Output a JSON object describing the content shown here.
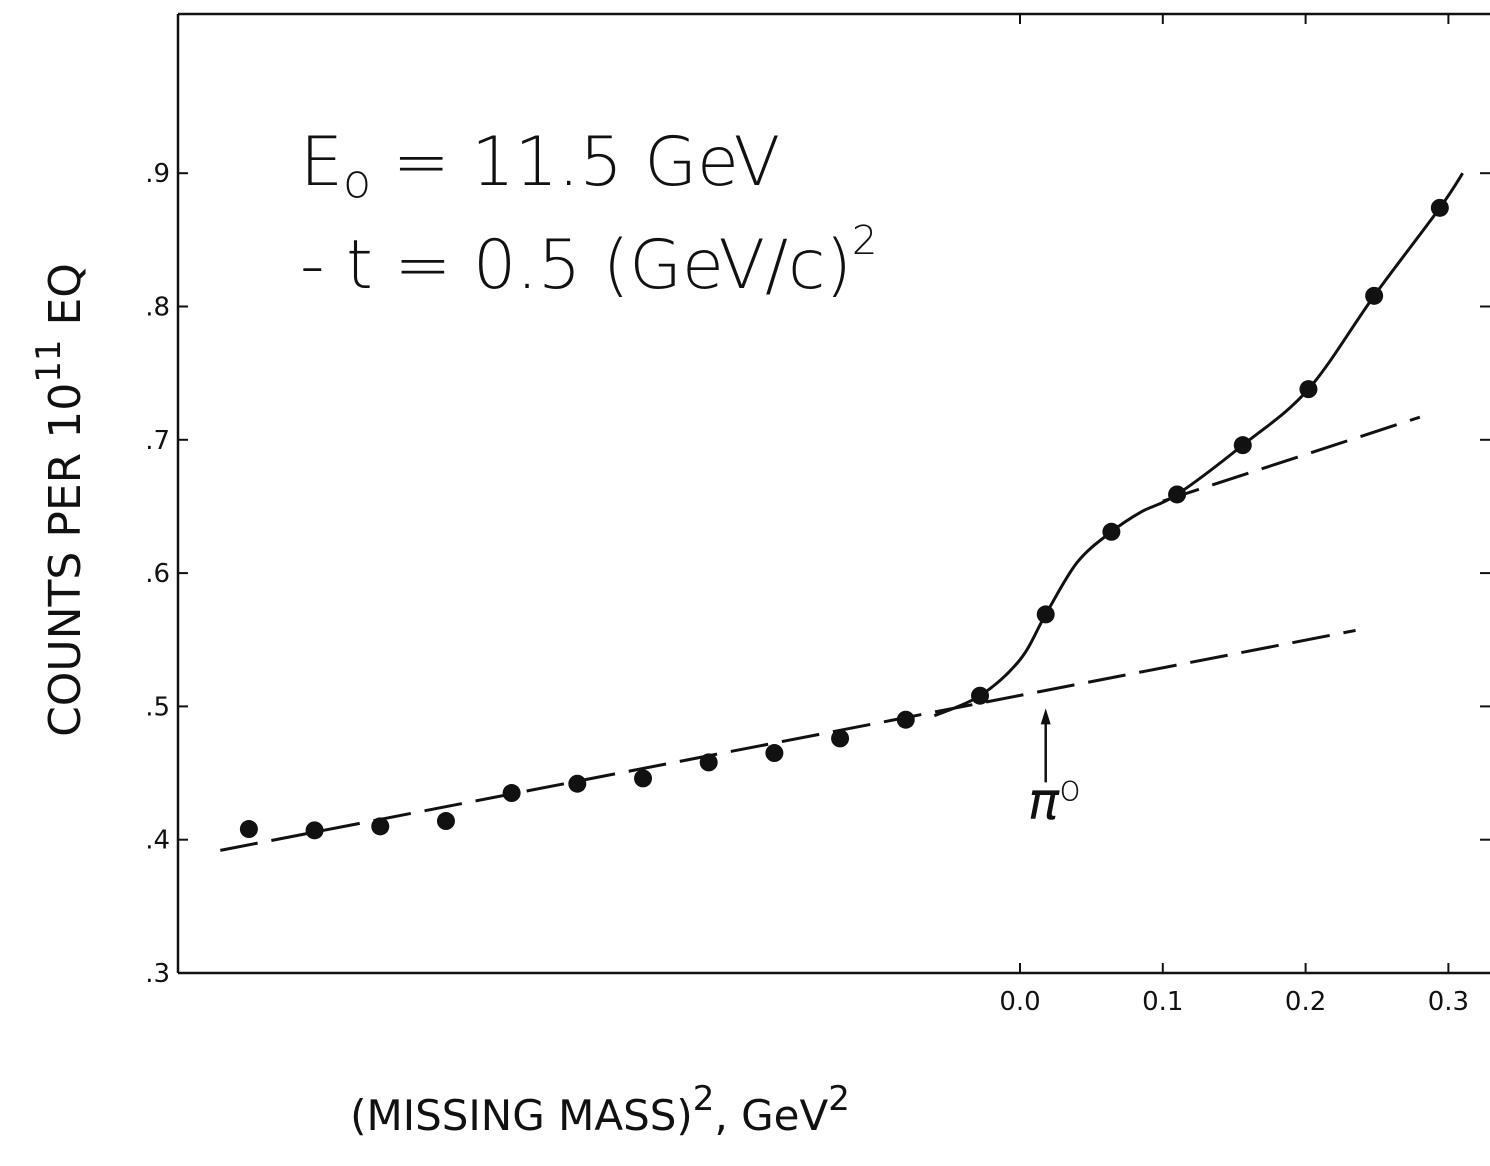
{
  "chart_data": {
    "type": "scatter",
    "title": "",
    "xlabel": "(MISSING MASS)",
    "xlabel_sup": "2",
    "xlabel_unit": ", GeV",
    "xlabel_unit_sup": "2",
    "ylabel": "COUNTS PER 10",
    "ylabel_sup": "11",
    "ylabel_unit": "EQ",
    "xlim": [
      -0.6,
      0.33
    ],
    "ylim": [
      0.3,
      1.0
    ],
    "x_ticks": [
      {
        "value": 0.0,
        "label": "0.0"
      },
      {
        "value": 0.1,
        "label": "0.1"
      },
      {
        "value": 0.2,
        "label": "0.2"
      },
      {
        "value": 0.3,
        "label": "0.3"
      }
    ],
    "y_ticks": [
      {
        "value": 0.3,
        "label": ".3"
      },
      {
        "value": 0.4,
        "label": ".4"
      },
      {
        "value": 0.5,
        "label": ".5"
      },
      {
        "value": 0.6,
        "label": ".6"
      },
      {
        "value": 0.7,
        "label": ".7"
      },
      {
        "value": 0.8,
        "label": ".8"
      },
      {
        "value": 0.9,
        "label": ".9"
      }
    ],
    "grid": false,
    "legend": "none",
    "series": [
      {
        "marker": "filled-circle",
        "x": [
          -0.54,
          -0.494,
          -0.448,
          -0.402,
          -0.356,
          -0.31,
          -0.264,
          -0.218,
          -0.172,
          -0.126,
          -0.08,
          -0.028,
          0.018,
          0.064,
          0.11,
          0.156,
          0.202,
          0.248,
          0.294
        ],
        "y": [
          0.408,
          0.407,
          0.41,
          0.414,
          0.435,
          0.442,
          0.446,
          0.458,
          0.465,
          0.476,
          0.49,
          0.508,
          0.569,
          0.631,
          0.659,
          0.696,
          0.738,
          0.808,
          0.874
        ]
      }
    ],
    "curves": [
      {
        "style": "dashed",
        "x": [
          -0.56,
          0.235
        ],
        "y": [
          0.392,
          0.557
        ]
      },
      {
        "style": "dashed",
        "x": [
          0.1,
          0.28
        ],
        "y": [
          0.654,
          0.717
        ]
      },
      {
        "style": "solid",
        "x": [
          -0.06,
          -0.028,
          0.0,
          0.018,
          0.04,
          0.064,
          0.085,
          0.11,
          0.156,
          0.202,
          0.248,
          0.294,
          0.31
        ],
        "y": [
          0.493,
          0.508,
          0.535,
          0.569,
          0.608,
          0.631,
          0.646,
          0.659,
          0.696,
          0.738,
          0.808,
          0.874,
          0.9
        ]
      }
    ],
    "annotations": [
      {
        "text": "E",
        "sub": "o",
        "rest": " = 11.5 GeV"
      },
      {
        "text": "- t = 0.5 (GeV/c)",
        "sup": "2"
      },
      {
        "text": "π",
        "sup": "o",
        "arrow_x": 0.018,
        "arrow_y": 0.5
      }
    ]
  }
}
